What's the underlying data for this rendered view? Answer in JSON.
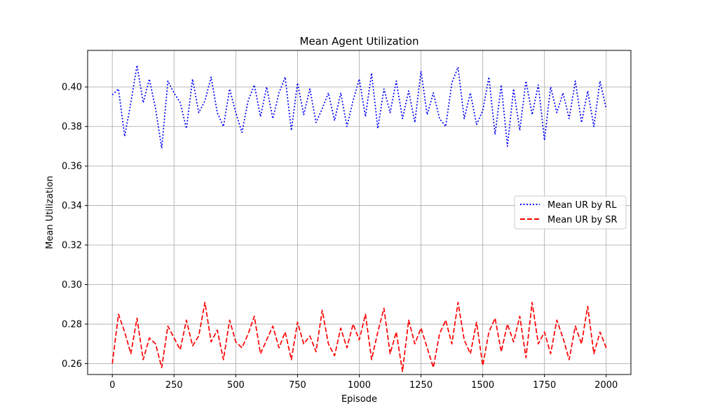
{
  "chart_data": {
    "type": "line",
    "title": "Mean Agent Utilization",
    "xlabel": "Episode",
    "ylabel": "Mean Utilization",
    "xlim": [
      -100,
      2100
    ],
    "ylim": [
      0.2545,
      0.4185
    ],
    "x_ticks": [
      0,
      250,
      500,
      750,
      1000,
      1250,
      1500,
      1750,
      2000
    ],
    "y_ticks": [
      0.26,
      0.28,
      0.3,
      0.32,
      0.34,
      0.36,
      0.38,
      0.4
    ],
    "x_tick_labels": [
      "0",
      "250",
      "500",
      "750",
      "1000",
      "1250",
      "1500",
      "1750",
      "2000"
    ],
    "y_tick_labels": [
      "0.26",
      "0.28",
      "0.30",
      "0.32",
      "0.34",
      "0.36",
      "0.38",
      "0.40"
    ],
    "grid": true,
    "legend_position": "center-right",
    "x": [
      0,
      25,
      50,
      75,
      100,
      125,
      150,
      175,
      200,
      225,
      250,
      275,
      300,
      325,
      350,
      375,
      400,
      425,
      450,
      475,
      500,
      525,
      550,
      575,
      600,
      625,
      650,
      675,
      700,
      725,
      750,
      775,
      800,
      825,
      850,
      875,
      900,
      925,
      950,
      975,
      1000,
      1025,
      1050,
      1075,
      1100,
      1125,
      1150,
      1175,
      1200,
      1225,
      1250,
      1275,
      1300,
      1325,
      1350,
      1375,
      1400,
      1425,
      1450,
      1475,
      1500,
      1525,
      1550,
      1575,
      1600,
      1625,
      1650,
      1675,
      1700,
      1725,
      1750,
      1775,
      1800,
      1825,
      1850,
      1875,
      1900,
      1925,
      1950,
      1975,
      2000
    ],
    "series": [
      {
        "name": "Mean UR by RL",
        "color": "#0000ff",
        "style": "dotted",
        "values": [
          0.396,
          0.399,
          0.375,
          0.392,
          0.411,
          0.392,
          0.404,
          0.389,
          0.369,
          0.403,
          0.397,
          0.392,
          0.379,
          0.404,
          0.387,
          0.393,
          0.405,
          0.387,
          0.38,
          0.399,
          0.387,
          0.377,
          0.393,
          0.401,
          0.385,
          0.4,
          0.384,
          0.397,
          0.405,
          0.378,
          0.402,
          0.386,
          0.399,
          0.382,
          0.389,
          0.397,
          0.383,
          0.397,
          0.38,
          0.393,
          0.404,
          0.385,
          0.407,
          0.379,
          0.399,
          0.387,
          0.403,
          0.384,
          0.398,
          0.382,
          0.408,
          0.386,
          0.397,
          0.384,
          0.38,
          0.402,
          0.41,
          0.384,
          0.397,
          0.381,
          0.388,
          0.405,
          0.376,
          0.401,
          0.37,
          0.399,
          0.378,
          0.403,
          0.386,
          0.401,
          0.373,
          0.4,
          0.387,
          0.397,
          0.384,
          0.403,
          0.382,
          0.398,
          0.38,
          0.403,
          0.389
        ]
      },
      {
        "name": "Mean UR by SR",
        "color": "#ff0000",
        "style": "dashed",
        "values": [
          0.26,
          0.285,
          0.276,
          0.265,
          0.283,
          0.262,
          0.273,
          0.27,
          0.258,
          0.279,
          0.273,
          0.267,
          0.282,
          0.269,
          0.274,
          0.291,
          0.271,
          0.277,
          0.262,
          0.282,
          0.271,
          0.268,
          0.275,
          0.284,
          0.265,
          0.272,
          0.279,
          0.268,
          0.276,
          0.262,
          0.281,
          0.27,
          0.274,
          0.266,
          0.287,
          0.27,
          0.264,
          0.278,
          0.268,
          0.28,
          0.272,
          0.285,
          0.262,
          0.276,
          0.288,
          0.265,
          0.276,
          0.256,
          0.282,
          0.27,
          0.278,
          0.268,
          0.258,
          0.275,
          0.282,
          0.27,
          0.291,
          0.272,
          0.265,
          0.281,
          0.259,
          0.276,
          0.283,
          0.266,
          0.28,
          0.271,
          0.284,
          0.263,
          0.291,
          0.27,
          0.276,
          0.265,
          0.282,
          0.273,
          0.262,
          0.279,
          0.27,
          0.289,
          0.265,
          0.276,
          0.268
        ]
      }
    ]
  }
}
